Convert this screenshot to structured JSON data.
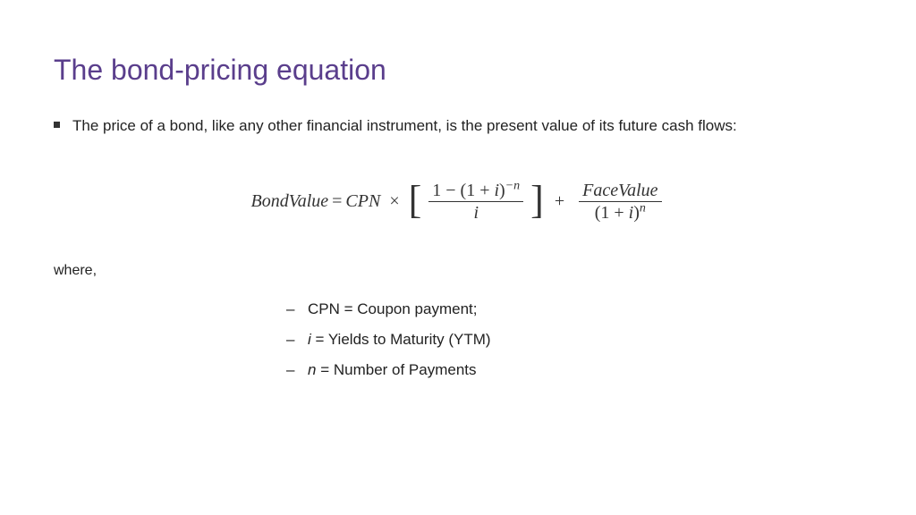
{
  "title": "The bond-pricing equation",
  "title_color": "#5a3e8c",
  "bullet_text": "The price of a bond, like any other financial instrument,  is the present value of its future cash flows:",
  "equation": {
    "lhs": "BondValue",
    "eq": "=",
    "cpn": "CPN",
    "times": "×",
    "frac1_num_a": "1 − (1 + ",
    "frac1_num_i": "i",
    "frac1_num_b": ")",
    "frac1_num_exp": "−n",
    "frac1_den": "i",
    "plus": "+",
    "frac2_num": "FaceValue",
    "frac2_den_a": "(1 + ",
    "frac2_den_i": "i",
    "frac2_den_b": ")",
    "frac2_den_exp": "n"
  },
  "where_label": "where,",
  "definitions": [
    {
      "var": "CPN",
      "text": " = Coupon payment;",
      "italic": false
    },
    {
      "var": "i",
      "text": " = Yields to Maturity (YTM)",
      "italic": true
    },
    {
      "var": "n",
      "text": " = Number of Payments",
      "italic": true
    }
  ],
  "colors": {
    "text": "#222222",
    "equation": "#333333",
    "background": "#ffffff"
  },
  "fonts": {
    "body": "Arial",
    "equation": "Times New Roman",
    "title_size": 32,
    "body_size": 17,
    "equation_size": 20
  }
}
